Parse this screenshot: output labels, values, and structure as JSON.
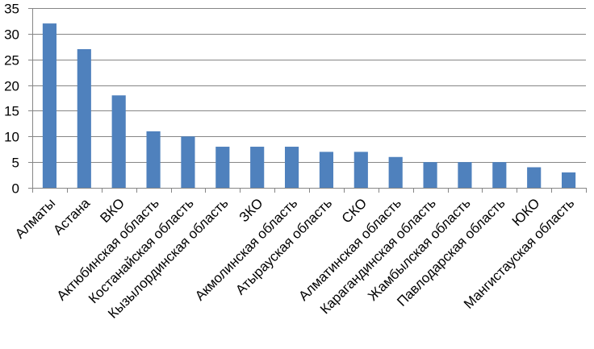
{
  "chart_data": {
    "type": "bar",
    "categories": [
      "Алматы",
      "Астана",
      "ВКО",
      "Актюбинская область",
      "Костанайская область",
      "Кызылординская область",
      "ЗКО",
      "Акмолинская область",
      "Атырауская область",
      "СКО",
      "Алматинская область",
      "Карагандинская область",
      "Жамбылская область",
      "Павлодарская область",
      "ЮКО",
      "Мангистауская область"
    ],
    "values": [
      32,
      27,
      18,
      11,
      10,
      8,
      8,
      8,
      7,
      7,
      6,
      5,
      5,
      5,
      4,
      3
    ],
    "ylim": [
      0,
      35
    ],
    "yticks": [
      "0",
      "5",
      "10",
      "15",
      "20",
      "25",
      "30",
      "35"
    ],
    "grid": true,
    "legend": "none",
    "colors": {
      "bar": "#4F81BD",
      "grid": "#868686",
      "axis": "#868686"
    }
  }
}
